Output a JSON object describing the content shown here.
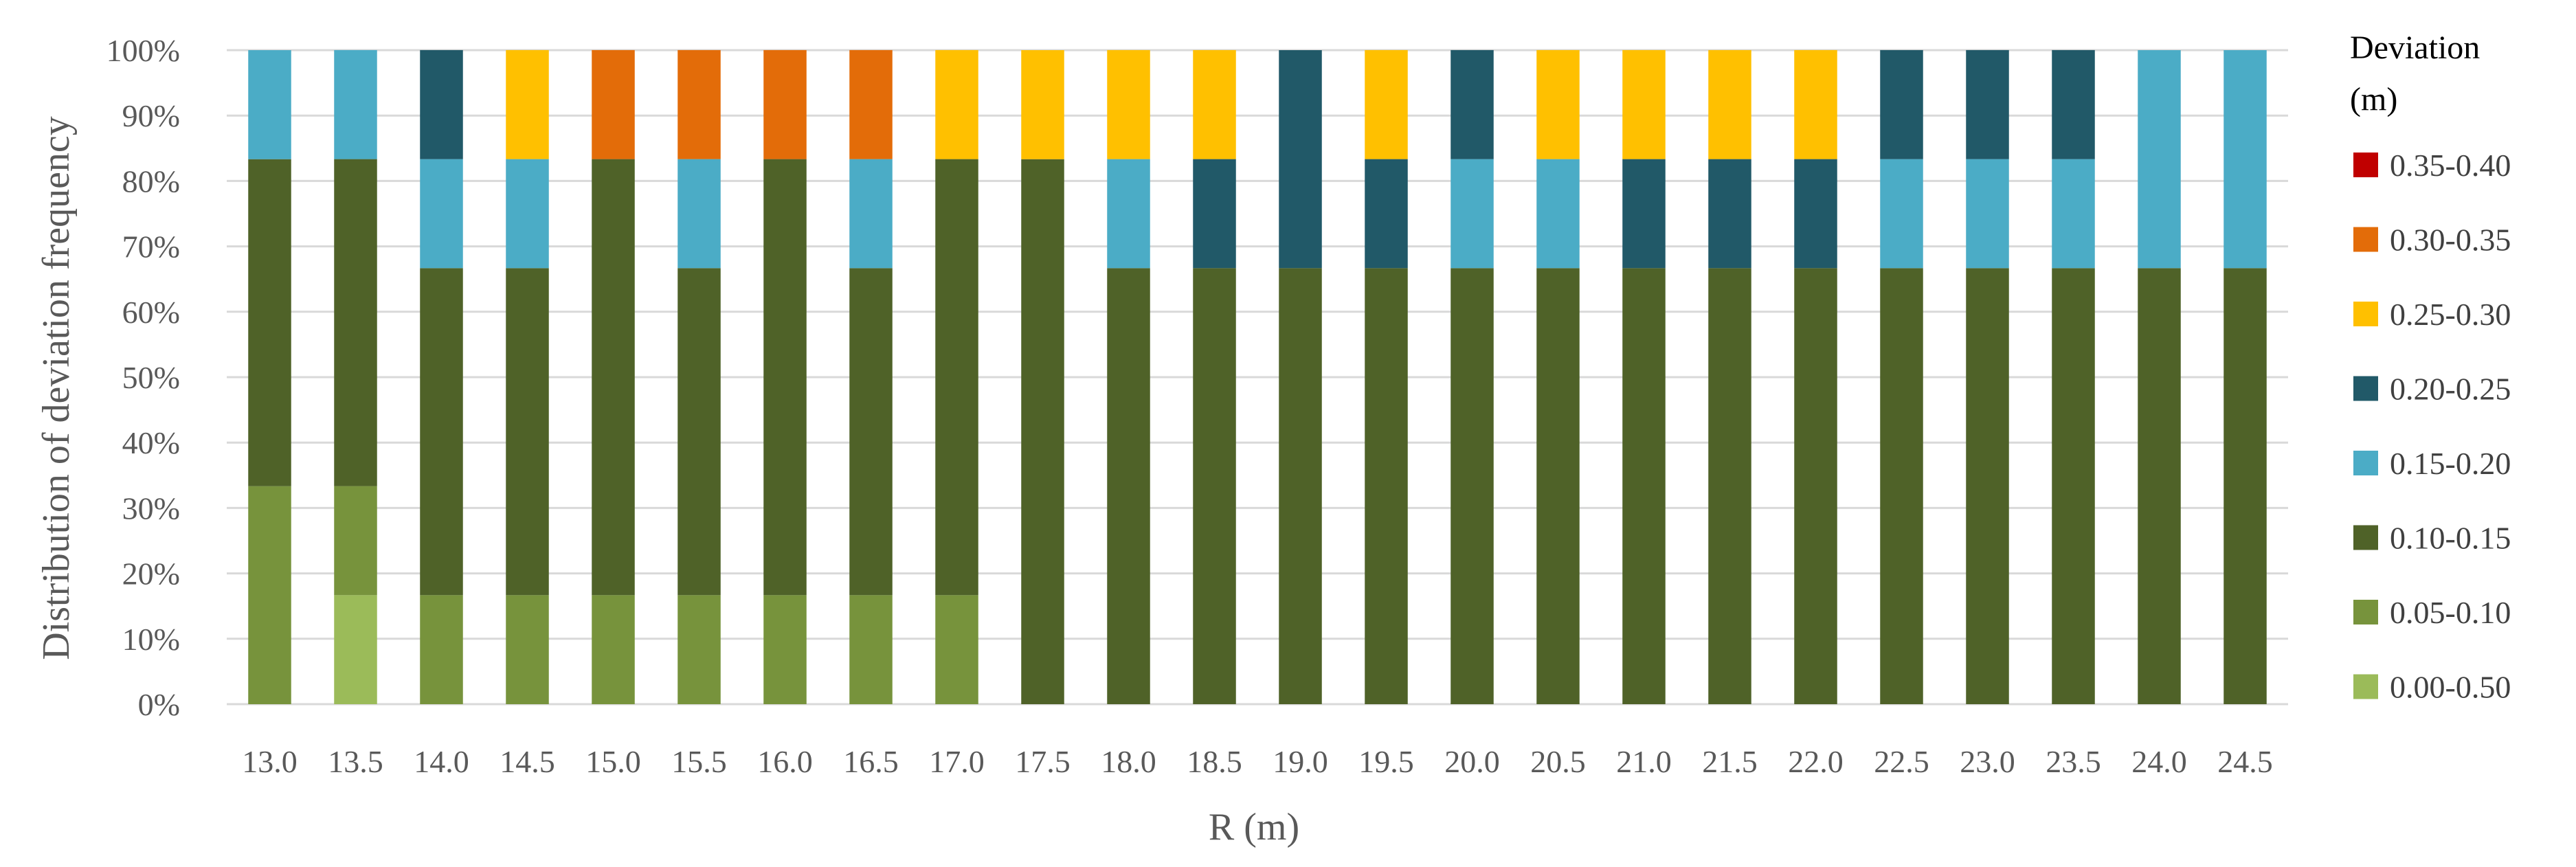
{
  "chart_data": {
    "type": "bar",
    "stacked": true,
    "percent": true,
    "title": "",
    "xlabel": "R (m)",
    "ylabel": "Distribution of deviation frequency",
    "ylim": [
      0,
      100
    ],
    "yticks": [
      "0%",
      "10%",
      "20%",
      "30%",
      "40%",
      "50%",
      "60%",
      "70%",
      "80%",
      "90%",
      "100%"
    ],
    "grid": true,
    "legend_position": "right",
    "legend_title": [
      "Deviation",
      "(m)"
    ],
    "categories": [
      "13.0",
      "13.5",
      "14.0",
      "14.5",
      "15.0",
      "15.5",
      "16.0",
      "16.5",
      "17.0",
      "17.5",
      "18.0",
      "18.5",
      "19.0",
      "19.5",
      "20.0",
      "20.5",
      "21.0",
      "21.5",
      "22.0",
      "22.5",
      "23.0",
      "23.5",
      "24.0",
      "24.5"
    ],
    "series": [
      {
        "name": "0.00-0.50",
        "color": "#9BBB59",
        "values": [
          0,
          16.67,
          0,
          0,
          0,
          0,
          0,
          0,
          0,
          0,
          0,
          0,
          0,
          0,
          0,
          0,
          0,
          0,
          0,
          0,
          0,
          0,
          0,
          0
        ]
      },
      {
        "name": "0.05-0.10",
        "color": "#77933C",
        "values": [
          33.33,
          16.67,
          16.67,
          16.67,
          16.67,
          16.67,
          16.67,
          16.67,
          16.67,
          0,
          0,
          0,
          0,
          0,
          0,
          0,
          0,
          0,
          0,
          0,
          0,
          0,
          0,
          0
        ]
      },
      {
        "name": "0.10-0.15",
        "color": "#4F6228",
        "values": [
          50,
          50,
          50,
          50,
          66.67,
          50,
          66.67,
          50,
          66.67,
          83.33,
          66.67,
          66.67,
          66.67,
          66.67,
          66.67,
          66.67,
          66.67,
          66.67,
          66.67,
          66.67,
          66.67,
          66.67,
          66.67,
          66.67
        ]
      },
      {
        "name": "0.15-0.20",
        "color": "#4BACC6",
        "values": [
          16.67,
          16.67,
          16.67,
          16.67,
          0,
          16.67,
          0,
          16.67,
          0,
          0,
          16.67,
          0,
          0,
          0,
          16.67,
          16.67,
          0,
          0,
          0,
          16.67,
          16.67,
          16.67,
          33.33,
          33.33
        ]
      },
      {
        "name": "0.20-0.25",
        "color": "#215968",
        "values": [
          0,
          0,
          16.67,
          0,
          0,
          0,
          0,
          0,
          0,
          0,
          0,
          16.67,
          33.33,
          16.67,
          16.67,
          0,
          16.67,
          16.67,
          16.67,
          16.67,
          16.67,
          16.67,
          0,
          0
        ]
      },
      {
        "name": "0.25-0.30",
        "color": "#FFC000",
        "values": [
          0,
          0,
          0,
          16.67,
          0,
          0,
          0,
          0,
          16.67,
          16.67,
          16.67,
          16.67,
          0,
          16.67,
          0,
          16.67,
          16.67,
          16.67,
          16.67,
          0,
          0,
          0,
          0,
          0
        ]
      },
      {
        "name": "0.30-0.35",
        "color": "#E36C09",
        "values": [
          0,
          0,
          0,
          0,
          16.67,
          16.67,
          16.67,
          16.67,
          0,
          0,
          0,
          0,
          0,
          0,
          0,
          0,
          0,
          0,
          0,
          0,
          0,
          0,
          0,
          0
        ]
      },
      {
        "name": "0.35-0.40",
        "color": "#C00000",
        "values": [
          0,
          0,
          0,
          0,
          0,
          0,
          0,
          0,
          0,
          0,
          0,
          0,
          0,
          0,
          0,
          0,
          0,
          0,
          0,
          0,
          0,
          0,
          0,
          0
        ]
      }
    ]
  }
}
